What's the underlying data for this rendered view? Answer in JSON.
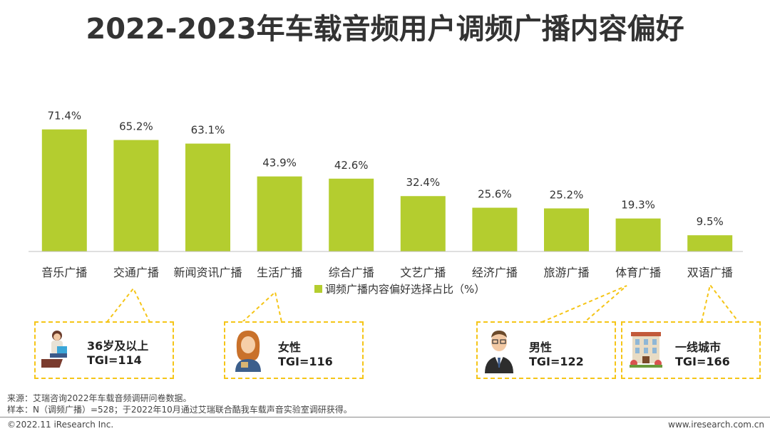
{
  "title": "2022-2023年车载音频用户调频广播内容偏好",
  "chart_data": {
    "type": "bar",
    "categories": [
      "音乐广播",
      "交通广播",
      "新闻资讯广播",
      "生活广播",
      "综合广播",
      "文艺广播",
      "经济广播",
      "旅游广播",
      "体育广播",
      "双语广播"
    ],
    "series": [
      {
        "name": "调频广播内容偏好选择占比（%）",
        "values": [
          71.4,
          65.2,
          63.1,
          43.9,
          42.6,
          32.4,
          25.6,
          25.2,
          19.3,
          9.5
        ],
        "labels": [
          "71.4%",
          "65.2%",
          "63.1%",
          "43.9%",
          "42.6%",
          "32.4%",
          "25.6%",
          "25.2%",
          "19.3%",
          "9.5%"
        ]
      }
    ],
    "ylim": [
      0,
      100
    ],
    "color": "#b4cd2f",
    "legend": "bottom"
  },
  "callouts": [
    {
      "line1": "36岁及以上",
      "line2": "TGI=114",
      "icon": "reading-person-icon",
      "category": "交通广播"
    },
    {
      "line1": "女性",
      "line2": "TGI=116",
      "icon": "woman-avatar-icon",
      "category": "生活广播"
    },
    {
      "line1": "男性",
      "line2": "TGI=122",
      "icon": "businessman-avatar-icon",
      "category": "体育广播"
    },
    {
      "line1": "一线城市",
      "line2": "TGI=166",
      "icon": "building-icon",
      "category": "双语广播"
    }
  ],
  "footer": {
    "source": "来源：艾瑞咨询2022年车载音频调研问卷数据。",
    "sample": "样本：N（调频广播）=528；于2022年10月通过艾瑞联合酷我车载声音实验室调研获得。",
    "copyright": "©2022.11 iResearch Inc.",
    "website": "www.iresearch.com.cn"
  },
  "colors": {
    "bar": "#b4cd2f",
    "callout_border": "#f5c518"
  }
}
